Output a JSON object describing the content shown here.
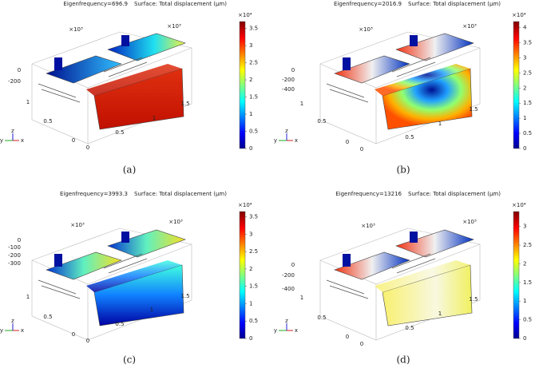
{
  "panels": [
    {
      "frequency": "Eigenfrequency=696.9",
      "surface": "Surface: Total displacement (μm)",
      "colorbar": {
        "scale": "×10⁴",
        "lim": [
          0,
          3.7
        ],
        "ticks": [
          0,
          0.5,
          1,
          1.5,
          2,
          2.5,
          3,
          3.5
        ]
      },
      "axis_labels": [
        "×10³",
        "×10³",
        "0",
        "-200",
        "1",
        "0.5",
        "0",
        "0",
        "0.5",
        "1",
        "1.5"
      ],
      "triad": [
        "y",
        "z",
        "x"
      ],
      "caption": "(a)"
    },
    {
      "frequency": "Eigenfrequency=2016.9",
      "surface": "Surface: Total displacement (μm)",
      "colorbar": {
        "scale": "×10⁴",
        "lim": [
          0,
          4.2
        ],
        "ticks": [
          0,
          0.5,
          1,
          1.5,
          2,
          2.5,
          3,
          3.5,
          4
        ]
      },
      "axis_labels": [
        "×10³",
        "×10³",
        "0",
        "-200",
        "-400",
        "1",
        "0.5",
        "0",
        "0",
        "0.5",
        "1",
        "1.5"
      ],
      "triad": [
        "y",
        "z",
        "x"
      ],
      "caption": "(b)"
    },
    {
      "frequency": "Eigenfrequency=3993.3",
      "surface": "Surface: Total displacement (μm)",
      "colorbar": {
        "scale": "×10⁴",
        "lim": [
          0,
          3.65
        ],
        "ticks": [
          0,
          0.5,
          1,
          1.5,
          2,
          2.5,
          3,
          3.5
        ]
      },
      "axis_labels": [
        "×10³",
        "×10³",
        "0",
        "-100",
        "-200",
        "-300",
        "1",
        "0.5",
        "0",
        "0",
        "0.5",
        "1",
        "1.5"
      ],
      "triad": [
        "y",
        "z",
        "x"
      ],
      "caption": "(c)"
    },
    {
      "frequency": "Eigenfrequency=13216",
      "surface": "Surface: Total displacement (μm)",
      "colorbar": {
        "scale": "×10⁴",
        "lim": [
          0,
          3.4
        ],
        "ticks": [
          0,
          0.5,
          1,
          1.5,
          2,
          2.5,
          3
        ]
      },
      "axis_labels": [
        "×10³",
        "×10³",
        "0",
        "-200",
        "-400",
        "1",
        "0.5",
        "0",
        "0",
        "0.5",
        "1",
        "1.5"
      ],
      "triad": [
        "y",
        "z",
        "x"
      ],
      "caption": "(d)"
    }
  ]
}
